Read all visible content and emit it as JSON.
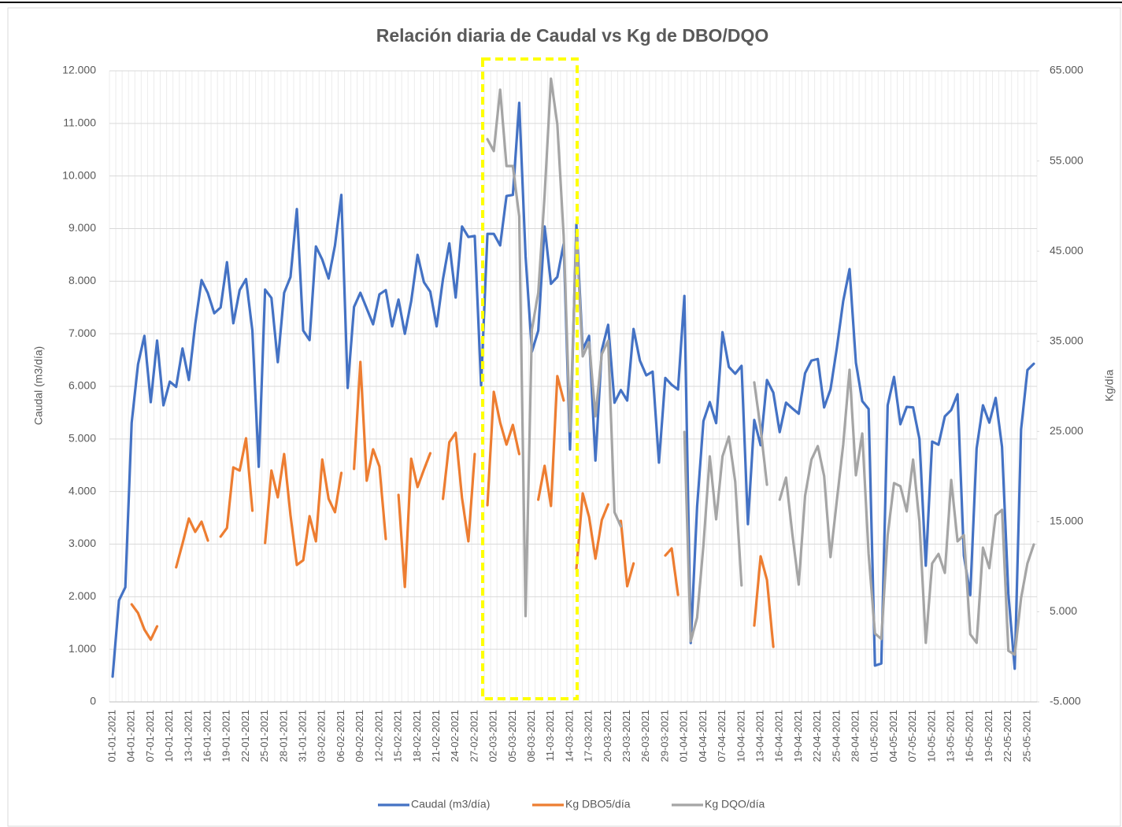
{
  "chart_data": {
    "type": "line",
    "title": "Relación diaria de Caudal vs Kg de DBO/DQO",
    "y_label": "Caudal (m3/día)",
    "y2_label": "Kg/día",
    "categories": [
      "01-01-2021",
      null,
      null,
      "04-01-2021",
      null,
      null,
      "07-01-2021",
      null,
      null,
      "10-01-2021",
      null,
      null,
      "13-01-2021",
      null,
      null,
      "16-01-2021",
      null,
      null,
      "19-01-2021",
      null,
      null,
      "22-01-2021",
      null,
      null,
      "25-01-2021",
      null,
      null,
      "28-01-2021",
      null,
      null,
      "31-01-2021",
      null,
      null,
      "03-02-2021",
      null,
      null,
      "06-02-2021",
      null,
      null,
      "09-02-2021",
      null,
      null,
      "12-02-2021",
      null,
      null,
      "15-02-2021",
      null,
      null,
      "18-02-2021",
      null,
      null,
      "21-02-2021",
      null,
      null,
      "24-02-2021",
      null,
      null,
      "27-02-2021",
      null,
      null,
      "02-03-2021",
      null,
      null,
      "05-03-2021",
      null,
      null,
      "08-03-2021",
      null,
      null,
      "11-03-2021",
      null,
      null,
      "14-03-2021",
      null,
      null,
      "17-03-2021",
      null,
      null,
      "20-03-2021",
      null,
      null,
      "23-03-2021",
      null,
      null,
      "26-03-2021",
      null,
      null,
      "29-03-2021",
      null,
      null,
      "01-04-2021",
      null,
      null,
      "04-04-2021",
      null,
      null,
      "07-04-2021",
      null,
      null,
      "10-04-2021",
      null,
      null,
      "13-04-2021",
      null,
      null,
      "16-04-2021",
      null,
      null,
      "19-04-2021",
      null,
      null,
      "22-04-2021",
      null,
      null,
      "25-04-2021",
      null,
      null,
      "28-04-2021",
      null,
      null,
      "01-05-2021",
      null,
      null,
      "04-05-2021",
      null,
      null,
      "07-05-2021",
      null,
      null,
      "10-05-2021",
      null,
      null,
      "13-05-2021",
      null,
      null,
      "16-05-2021",
      null,
      null,
      "19-05-2021",
      null,
      null,
      "22-05-2021",
      null,
      null,
      "25-05-2021",
      null
    ],
    "series": [
      {
        "name": "Caudal (m3/día)",
        "color": "#4472c4",
        "axis": "y",
        "values": [
          480,
          1930,
          2180,
          5310,
          6420,
          6960,
          5700,
          6870,
          5640,
          6090,
          5990,
          6720,
          6120,
          7180,
          8020,
          7770,
          7390,
          7500,
          8360,
          7200,
          7830,
          8040,
          7060,
          4470,
          7840,
          7680,
          6460,
          7780,
          8080,
          9370,
          7060,
          6880,
          8660,
          8410,
          8050,
          8680,
          9640,
          5970,
          7510,
          7780,
          7480,
          7180,
          7750,
          7830,
          7140,
          7650,
          7000,
          7620,
          8500,
          7980,
          7800,
          7140,
          8040,
          8720,
          7690,
          9040,
          8840,
          8860,
          6020,
          8900,
          8900,
          8680,
          9620,
          9640,
          11390,
          8480,
          6660,
          7060,
          9040,
          7950,
          8080,
          8710,
          4800,
          9080,
          6700,
          6960,
          4590,
          6690,
          7170,
          5690,
          5930,
          5730,
          7090,
          6490,
          6210,
          6280,
          4550,
          6160,
          6030,
          5940,
          7720,
          1120,
          3710,
          5340,
          5700,
          5300,
          7030,
          6370,
          6240,
          6390,
          3380,
          5360,
          4880,
          6120,
          5880,
          5130,
          5690,
          5580,
          5480,
          6250,
          6490,
          6520,
          5600,
          5940,
          6730,
          7620,
          8230,
          6450,
          5720,
          5570,
          690,
          730,
          5640,
          6180,
          5280,
          5610,
          5600,
          5000,
          2590,
          4950,
          4890,
          5430,
          5550,
          5850,
          2780,
          2030,
          4820,
          5640,
          5310,
          5780,
          4850,
          2050,
          630,
          5180,
          6310,
          6430
        ]
      },
      {
        "name": "Kg DBO5/día",
        "color": "#ed7d31",
        "axis": "y2",
        "values": [
          null,
          null,
          null,
          5820,
          4860,
          3030,
          1900,
          3380,
          null,
          null,
          9930,
          12550,
          15340,
          13860,
          14990,
          12890,
          null,
          13330,
          14290,
          21010,
          20660,
          24240,
          16210,
          null,
          12630,
          20660,
          17690,
          22490,
          15690,
          10190,
          10710,
          15600,
          12810,
          21880,
          17520,
          16040,
          20400,
          null,
          20840,
          32710,
          19530,
          23020,
          21100,
          13070,
          null,
          17960,
          7750,
          21970,
          18830,
          20750,
          22580,
          null,
          17520,
          23800,
          24850,
          17610,
          12810,
          22490,
          null,
          16820,
          29390,
          25990,
          23540,
          25720,
          22490,
          null,
          null,
          17430,
          21190,
          16730,
          31140,
          28430,
          null,
          9750,
          18130,
          15510,
          10890,
          15170,
          16910,
          null,
          15080,
          7830,
          10360,
          null,
          null,
          null,
          null,
          11240,
          12020,
          6870,
          null,
          null,
          null,
          null,
          null,
          null,
          null,
          null,
          null,
          null,
          null,
          3470,
          11150,
          8530,
          1110,
          null,
          null,
          null,
          null,
          null,
          null,
          null,
          null,
          null,
          null,
          null,
          null,
          null,
          null,
          null,
          null,
          null,
          null,
          null,
          null,
          null,
          null,
          null,
          null,
          null,
          null,
          null,
          null,
          null,
          null,
          null,
          null,
          null,
          null,
          null,
          null,
          null,
          null,
          null,
          null,
          null
        ]
      },
      {
        "name": "Kg DQO/día",
        "color": "#a5a5a5",
        "axis": "y2",
        "values": [
          null,
          null,
          null,
          null,
          null,
          null,
          null,
          null,
          null,
          null,
          null,
          null,
          null,
          null,
          null,
          null,
          null,
          null,
          null,
          null,
          null,
          null,
          null,
          null,
          null,
          null,
          null,
          null,
          null,
          null,
          null,
          null,
          null,
          null,
          null,
          null,
          null,
          null,
          null,
          null,
          null,
          null,
          null,
          null,
          null,
          null,
          null,
          null,
          null,
          null,
          null,
          null,
          null,
          null,
          null,
          null,
          null,
          null,
          null,
          57410,
          56100,
          62910,
          54440,
          54440,
          48850,
          4520,
          36290,
          40390,
          51210,
          64130,
          59060,
          46670,
          25020,
          46930,
          33320,
          34890,
          26680,
          33580,
          35060,
          16040,
          14470,
          null,
          null,
          null,
          null,
          null,
          null,
          null,
          null,
          null,
          24940,
          1720,
          4340,
          12370,
          22230,
          15250,
          22230,
          24420,
          19440,
          7920,
          null,
          30440,
          25290,
          19090,
          null,
          17430,
          19880,
          13590,
          8010,
          17870,
          21880,
          23370,
          20050,
          11060,
          17340,
          23540,
          31830,
          20140,
          24770,
          11410,
          2590,
          1980,
          13500,
          19270,
          18920,
          16130,
          21880,
          14990,
          1550,
          10360,
          11410,
          9310,
          19620,
          12810,
          13500,
          2500,
          1550,
          12110,
          9840,
          15690,
          16300,
          670,
          240,
          6520,
          10360,
          12460
        ]
      }
    ],
    "ylim": [
      0,
      12000
    ],
    "yticks": [
      0,
      {
        "value": 1000,
        "label": "1.000"
      },
      {
        "value": 2000,
        "label": "2.000"
      },
      {
        "value": 3000,
        "label": "3.000"
      },
      {
        "value": 4000,
        "label": "4.000"
      },
      {
        "value": 5000,
        "label": "5.000"
      },
      {
        "value": 6000,
        "label": "6.000"
      },
      {
        "value": 7000,
        "label": "7.000"
      },
      {
        "value": 8000,
        "label": "8.000"
      },
      {
        "value": 9000,
        "label": "9.000"
      },
      {
        "value": 10000,
        "label": "10.000"
      },
      {
        "value": 11000,
        "label": "11.000"
      },
      {
        "value": 12000,
        "label": "12.000"
      }
    ],
    "y2lim": [
      -5000,
      65000
    ],
    "y2ticks": [
      {
        "value": -5000,
        "label": "-5.000"
      },
      {
        "value": 5000,
        "label": "5.000"
      },
      {
        "value": 15000,
        "label": "15.000"
      },
      {
        "value": 25000,
        "label": "25.000"
      },
      {
        "value": 35000,
        "label": "35.000"
      },
      {
        "value": 45000,
        "label": "45.000"
      },
      {
        "value": 55000,
        "label": "55.000"
      },
      {
        "value": 65000,
        "label": "65.000"
      }
    ],
    "grid": true,
    "legend": "bottom"
  }
}
